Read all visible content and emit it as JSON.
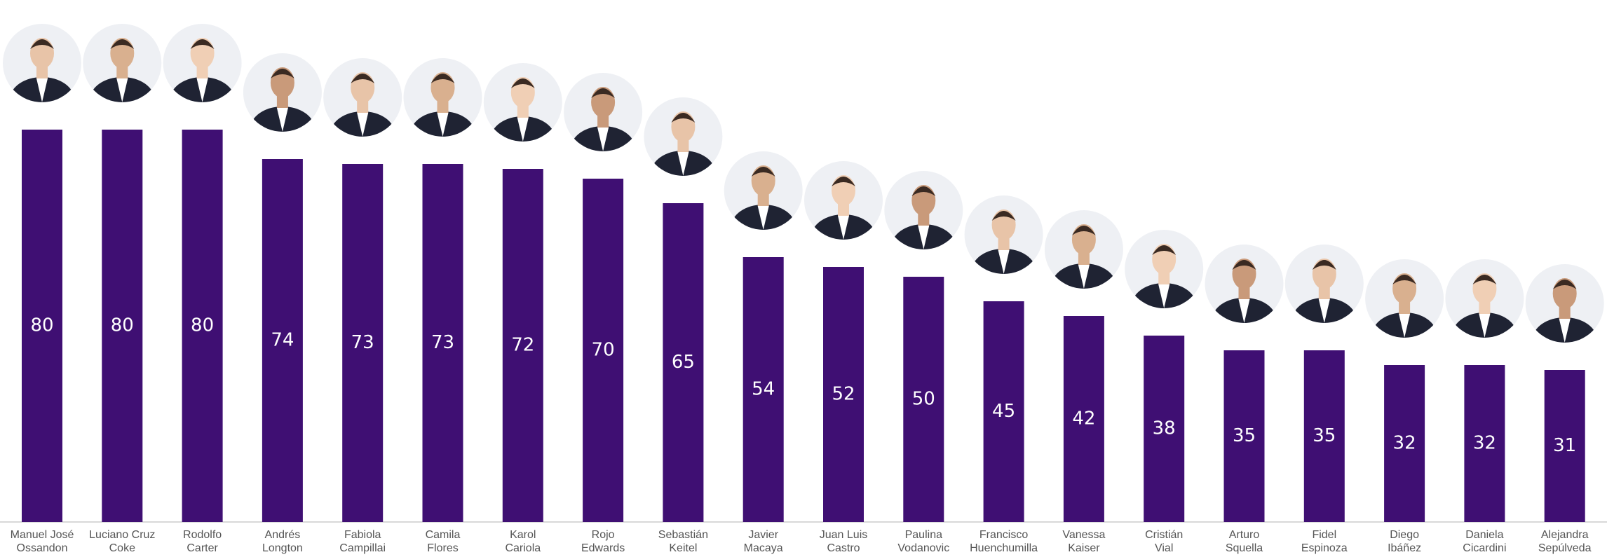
{
  "chart_data": {
    "type": "bar",
    "color": "#3f0f73",
    "categories": [
      "Manuel José\nOssandon",
      "Luciano Cruz\nCoke",
      "Rodolfo\nCarter",
      "Andrés\nLongton",
      "Fabiola\nCampillai",
      "Camila\nFlores",
      "Karol\nCariola",
      "Rojo\nEdwards",
      "Sebastián\nKeitel",
      "Javier\nMacaya",
      "Juan Luis\nCastro",
      "Paulina\nVodanovic",
      "Francisco\nHuenchumilla",
      "Vanessa\nKaiser",
      "Cristián\nVial",
      "Arturo\nSquella",
      "Fidel\nEspinoza",
      "Diego\nIbáñez",
      "Daniela\nCicardini",
      "Alejandra\nSepúlveda"
    ],
    "values": [
      80,
      80,
      80,
      74,
      73,
      73,
      72,
      70,
      65,
      54,
      52,
      50,
      45,
      42,
      38,
      35,
      35,
      32,
      32,
      31
    ]
  }
}
